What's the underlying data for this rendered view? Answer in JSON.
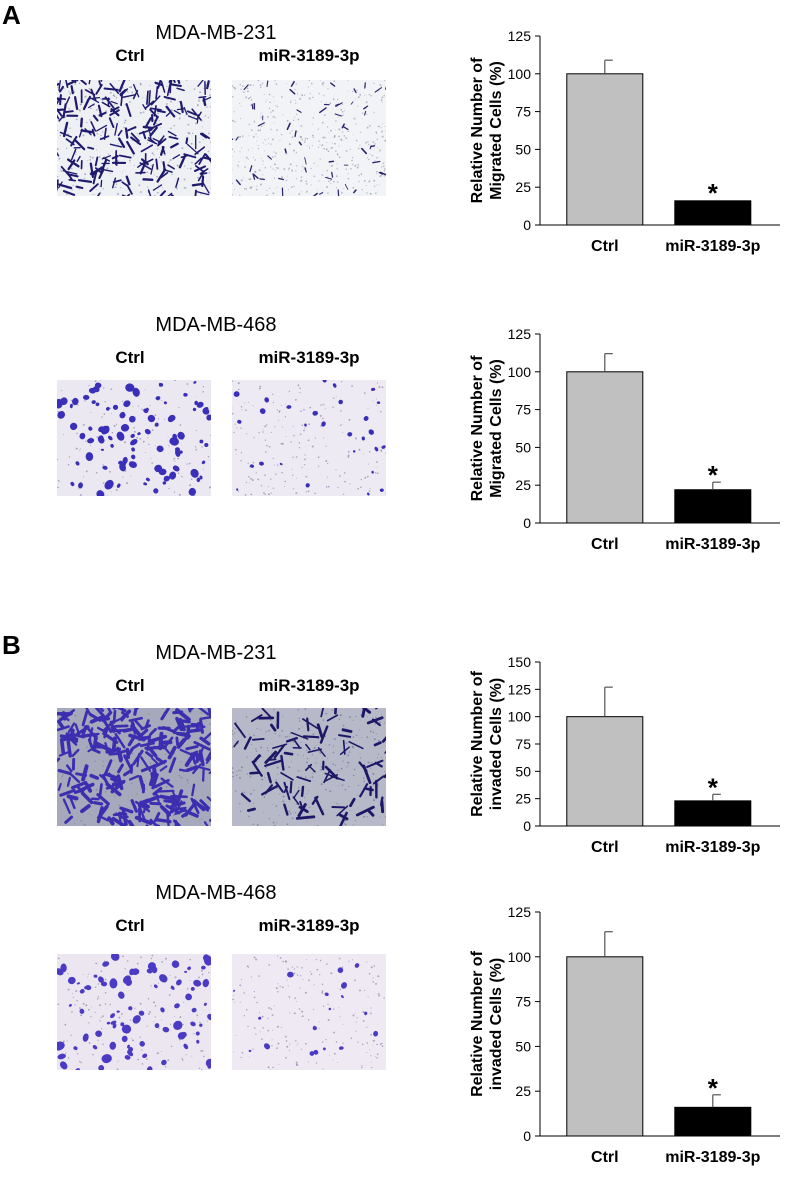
{
  "panels": [
    {
      "letter": "A"
    },
    {
      "letter": "B"
    }
  ],
  "blocks": [
    {
      "cell_line": "MDA-MB-231",
      "conditions": [
        "Ctrl",
        "miR-3189-3p"
      ],
      "image_style": "migration-231",
      "chart": {
        "ylabel1": "Relative Number of",
        "ylabel2": "Migrated Cells (%)"
      }
    },
    {
      "cell_line": "MDA-MB-468",
      "conditions": [
        "Ctrl",
        "miR-3189-3p"
      ],
      "image_style": "migration-468",
      "chart": {
        "ylabel1": "Relative Number of",
        "ylabel2": "Migrated Cells (%)"
      }
    },
    {
      "cell_line": "MDA-MB-231",
      "conditions": [
        "Ctrl",
        "miR-3189-3p"
      ],
      "image_style": "invasion-231",
      "chart": {
        "ylabel1": "Relative Number of",
        "ylabel2": "invaded Cells (%)"
      }
    },
    {
      "cell_line": "MDA-MB-468",
      "conditions": [
        "Ctrl",
        "miR-3189-3p"
      ],
      "image_style": "invasion-468",
      "chart": {
        "ylabel1": "Relative Number of",
        "ylabel2": "invaded Cells (%)"
      }
    }
  ],
  "colors": {
    "ctrl_bar": "#c0c0c0",
    "treated_bar": "#000000",
    "stain_dark": "#1f1a6e",
    "stain_purple": "#4b3bc4"
  },
  "chart_data": [
    {
      "type": "bar",
      "categories": [
        "Ctrl",
        "miR-3189-3p"
      ],
      "values": [
        100,
        16
      ],
      "errors": [
        9,
        0.5
      ],
      "significance": [
        "",
        "*"
      ],
      "ylabel": "Relative Number of Migrated Cells (%)",
      "ylim": [
        0,
        125
      ],
      "yticks": [
        0,
        25,
        50,
        75,
        100,
        125
      ]
    },
    {
      "type": "bar",
      "categories": [
        "Ctrl",
        "miR-3189-3p"
      ],
      "values": [
        100,
        22
      ],
      "errors": [
        12,
        5
      ],
      "significance": [
        "",
        "*"
      ],
      "ylabel": "Relative Number of Migrated Cells (%)",
      "ylim": [
        0,
        125
      ],
      "yticks": [
        0,
        25,
        50,
        75,
        100,
        125
      ]
    },
    {
      "type": "bar",
      "categories": [
        "Ctrl",
        "miR-3189-3p"
      ],
      "values": [
        100,
        23
      ],
      "errors": [
        27,
        6
      ],
      "significance": [
        "",
        "*"
      ],
      "ylabel": "Relative Number of invaded Cells (%)",
      "ylim": [
        0,
        150
      ],
      "yticks": [
        0,
        25,
        50,
        75,
        100,
        125,
        150
      ]
    },
    {
      "type": "bar",
      "categories": [
        "Ctrl",
        "miR-3189-3p"
      ],
      "values": [
        100,
        16
      ],
      "errors": [
        14,
        7
      ],
      "significance": [
        "",
        "*"
      ],
      "ylabel": "Relative Number of invaded Cells (%)",
      "ylim": [
        0,
        125
      ],
      "yticks": [
        0,
        25,
        50,
        75,
        100,
        125
      ]
    }
  ]
}
